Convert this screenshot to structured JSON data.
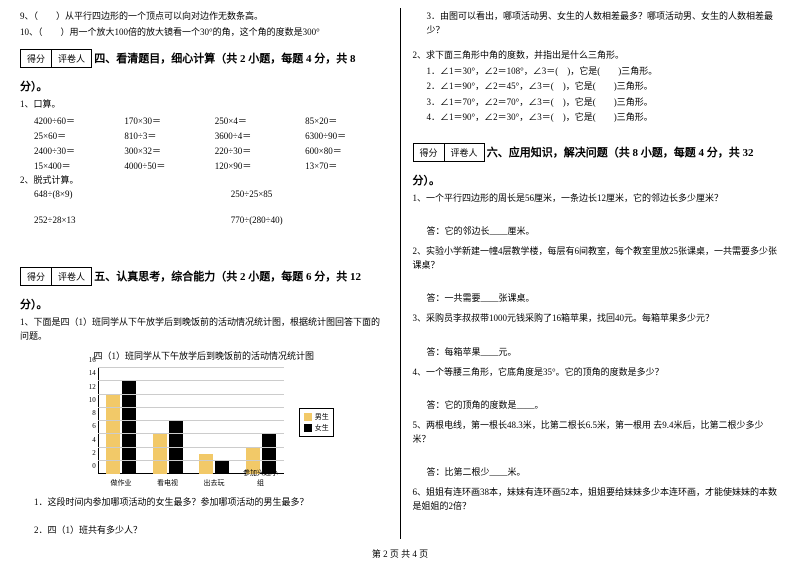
{
  "top": {
    "q9": "9、（　　）从平行四边形的一个顶点可以向对边作无数条高。",
    "q10": "10、（　　）用一个放大100倍的放大镜看一个30°的角，这个角的度数是300°"
  },
  "score": {
    "col1": "得分",
    "col2": "评卷人"
  },
  "sec4": {
    "title": "四、看清题目，细心计算（共 2 小题，每题 4 分，共 8",
    "title2": "分）。",
    "q1": "1、口算。",
    "oral": [
      "4200÷60＝",
      "170×30＝",
      "250×4＝",
      "85×20＝",
      "25×60＝",
      "810÷3＝",
      "3600÷4＝",
      "6300÷90＝",
      "2400÷30＝",
      "300×32＝",
      "220÷30＝",
      "600×80＝",
      "15×400＝",
      "4000÷50＝",
      "120×90＝",
      "13×70＝"
    ],
    "q2": "2、脱式计算。",
    "calc": [
      "648÷(8×9)",
      "250÷25×85",
      "252÷28×13",
      "770÷(280÷40)"
    ]
  },
  "sec5": {
    "title": "五、认真思考，综合能力（共 2 小题，每题 6 分，共 12",
    "title2": "分）。",
    "q1": "1、下面是四（1）班同学从下午放学后到晚饭前的活动情况统计图，根据统计图回答下面的问题。",
    "chart_title": "四（1）班同学从下午放学后到晚饭前的活动情况统计图",
    "sub1": "1．这段时间内参加哪项活动的女生最多？参加哪项活动的男生最多？",
    "sub2": "2．四（1）班共有多少人？"
  },
  "chart": {
    "ymax": 16,
    "ytick_step": 2,
    "categories": [
      "做作业",
      "看电视",
      "出去玩",
      "参加兴趣小组"
    ],
    "boys": [
      12,
      6,
      3,
      4
    ],
    "girls": [
      14,
      8,
      2,
      6
    ],
    "boy_color": "#f2c968",
    "girl_color": "#000000",
    "legend": {
      "boys": "男生",
      "girls": "女生"
    }
  },
  "right": {
    "q3": "3．由图可以看出，哪项活动男、女生的人数相差最多？哪项活动男、女生的人数相差最少？",
    "tri_head": "2、求下面三角形中角的度数，并指出是什么三角形。",
    "tri": [
      "1．∠1＝30°，∠2＝108°，∠3＝(　)，它是(　　)三角形。",
      "2．∠1＝90°，∠2＝45°，∠3＝(　)，它是(　　)三角形。",
      "3．∠1＝70°，∠2＝70°，∠3＝(　)，它是(　　)三角形。",
      "4．∠1＝90°，∠2＝30°，∠3＝(　)，它是(　　)三角形。"
    ]
  },
  "sec6": {
    "title": "六、应用知识，解决问题（共 8 小题，每题 4 分，共 32",
    "title2": "分）。",
    "q1": "1、一个平行四边形的周长是56厘米，一条边长12厘米，它的邻边长多少厘米？",
    "a1": "答：它的邻边长____厘米。",
    "q2": "2、实验小学新建一幢4层教学楼，每层有6间教室，每个教室里放25张课桌，一共需要多少张课桌？",
    "a2": "答：一共需要____张课桌。",
    "q3": "3、采购员李叔叔带1000元钱采购了16箱苹果，找回40元。每箱苹果多少元？",
    "a3": "答：每箱苹果____元。",
    "q4": "4、一个等腰三角形，它底角度是35°。它的顶角的度数是多少？",
    "a4": "答：它的顶角的度数是____。",
    "q5": "5、两根电线，第一根长48.3米，比第二根长6.5米，第一根用 去9.4米后，比第二根少多少米？",
    "a5": "答：比第二根少____米。",
    "q6": "6、姐姐有连环画38本，妹妹有连环画52本，姐姐要给妹妹多少本连环画，才能使妹妹的本数是姐姐的2倍？"
  },
  "footer": "第 2 页 共 4 页"
}
